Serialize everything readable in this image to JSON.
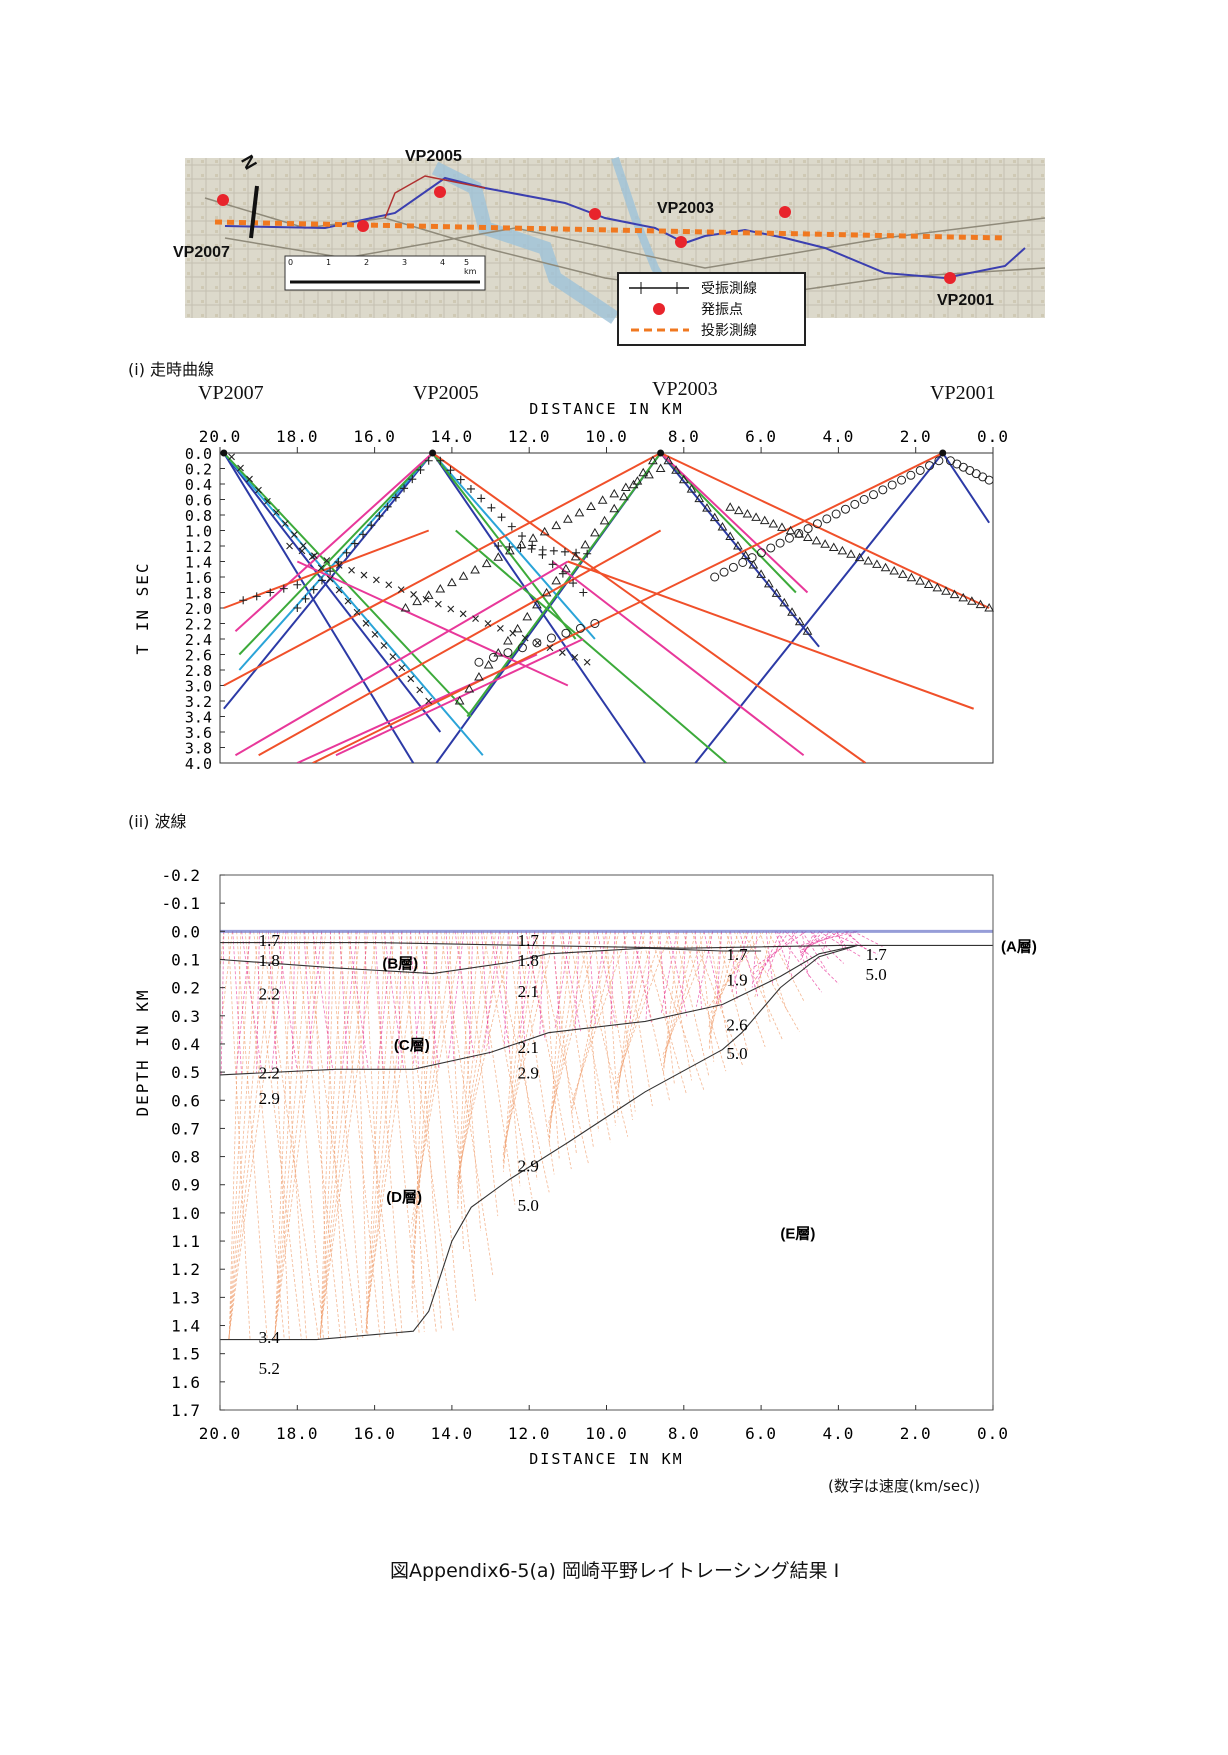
{
  "map": {
    "north": "N",
    "vp_labels": [
      "VP2005",
      "VP2007",
      "VP2003",
      "VP2001"
    ],
    "scale_ticks": [
      "0",
      "1",
      "2",
      "3",
      "4",
      "5 km"
    ],
    "legend": {
      "receiver_line": "受振測線",
      "shot_point": "発振点",
      "projection_line": "投影測線"
    },
    "colors": {
      "receiver": "#3b3fb0",
      "shot": "#e8242c",
      "projection": "#f07820",
      "map_bg": "#d9d6c8"
    }
  },
  "section_i": {
    "heading": "(i)  走時曲線",
    "vp_labels": [
      "VP2007",
      "VP2005",
      "VP2003",
      "VP2001"
    ]
  },
  "section_ii": {
    "heading": "(ii)  波線"
  },
  "chart_data": [
    {
      "type": "line",
      "xlabel": "DISTANCE IN KM",
      "ylabel": "T IN SEC",
      "x_ticks": [
        "20.0",
        "18.0",
        "16.0",
        "14.0",
        "12.0",
        "10.0",
        "8.0",
        "6.0",
        "4.0",
        "2.0",
        "0.0"
      ],
      "y_ticks": [
        "0.0",
        "0.2",
        "0.4",
        "0.6",
        "0.8",
        "1.0",
        "1.2",
        "1.4",
        "1.6",
        "1.8",
        "2.0",
        "2.2",
        "2.4",
        "2.6",
        "2.8",
        "3.0",
        "3.2",
        "3.4",
        "3.6",
        "3.8",
        "4.0"
      ],
      "xlim": [
        20.0,
        0.0
      ],
      "ylim": [
        0.0,
        4.0
      ],
      "sources": [
        {
          "name": "VP2007",
          "x": 19.9
        },
        {
          "name": "VP2005",
          "x": 14.5
        },
        {
          "name": "VP2003",
          "x": 8.6
        },
        {
          "name": "VP2001",
          "x": 1.3
        }
      ],
      "series": [
        {
          "color": "#2c3aa6",
          "lines": [
            [
              19.9,
              0.0,
              15.0,
              4.0
            ],
            [
              19.9,
              0.0,
              14.3,
              3.6
            ],
            [
              14.5,
              0.0,
              19.9,
              3.3
            ],
            [
              14.5,
              0.0,
              9.0,
              4.0
            ],
            [
              8.6,
              0.0,
              14.4,
              4.0
            ],
            [
              8.6,
              0.0,
              4.5,
              2.5
            ],
            [
              1.3,
              0.0,
              7.7,
              4.0
            ],
            [
              1.3,
              0.0,
              0.1,
              0.9
            ]
          ]
        },
        {
          "color": "#2aa4d8",
          "lines": [
            [
              19.9,
              0.0,
              13.2,
              3.9
            ],
            [
              14.5,
              0.0,
              19.5,
              2.8
            ],
            [
              14.5,
              0.0,
              10.3,
              2.4
            ]
          ]
        },
        {
          "color": "#3caa3a",
          "lines": [
            [
              19.9,
              0.0,
              13.5,
              3.4
            ],
            [
              14.5,
              0.0,
              19.5,
              2.6
            ],
            [
              14.5,
              0.0,
              10.8,
              2.4
            ],
            [
              8.6,
              0.0,
              13.6,
              3.4
            ],
            [
              8.6,
              0.0,
              5.1,
              1.8
            ],
            [
              13.9,
              1.0,
              6.9,
              4.0
            ]
          ]
        },
        {
          "color": "#e8389a",
          "lines": [
            [
              14.5,
              0.0,
              19.6,
              2.3
            ],
            [
              18.0,
              1.4,
              11.0,
              3.0
            ],
            [
              8.6,
              0.0,
              4.8,
              1.8
            ],
            [
              19.6,
              3.9,
              11.0,
              1.4
            ],
            [
              11.4,
              1.4,
              4.9,
              3.9
            ],
            [
              18.0,
              4.0,
              11.8,
              2.6
            ],
            [
              17.0,
              3.9,
              10.6,
              2.4
            ]
          ]
        },
        {
          "color": "#f0502a",
          "lines": [
            [
              19.9,
              2.0,
              14.6,
              1.0
            ],
            [
              19.9,
              3.0,
              8.6,
              0.0
            ],
            [
              8.6,
              0.0,
              0.1,
              2.0
            ],
            [
              11.0,
              1.4,
              0.5,
              3.3
            ],
            [
              14.5,
              0.0,
              3.3,
              4.0
            ],
            [
              17.6,
              4.0,
              1.3,
              0.0
            ],
            [
              19.0,
              3.9,
              8.6,
              1.0
            ]
          ]
        }
      ],
      "picks": [
        {
          "marker": "x",
          "label": "VP2007 picks"
        },
        {
          "marker": "+",
          "label": "VP2005 picks"
        },
        {
          "marker": "triangle",
          "label": "VP2003 picks"
        },
        {
          "marker": "circle",
          "label": "VP2001 picks"
        }
      ]
    },
    {
      "type": "line",
      "xlabel": "DISTANCE IN KM",
      "ylabel": "DEPTH IN KM",
      "x_ticks": [
        "20.0",
        "18.0",
        "16.0",
        "14.0",
        "12.0",
        "10.0",
        "8.0",
        "6.0",
        "4.0",
        "2.0",
        "0.0"
      ],
      "y_ticks": [
        "-0.2",
        "-0.1",
        "0.0",
        "0.1",
        "0.2",
        "0.3",
        "0.4",
        "0.5",
        "0.6",
        "0.7",
        "0.8",
        "0.9",
        "1.0",
        "1.1",
        "1.2",
        "1.3",
        "1.4",
        "1.5",
        "1.6",
        "1.7"
      ],
      "xlim": [
        20.0,
        0.0
      ],
      "ylim": [
        -0.2,
        1.7
      ],
      "boundaries": [
        {
          "name": "A-B",
          "points": [
            [
              20,
              0.04
            ],
            [
              16,
              0.04
            ],
            [
              12,
              0.05
            ],
            [
              8,
              0.06
            ],
            [
              4,
              0.05
            ],
            [
              0,
              0.05
            ]
          ]
        },
        {
          "name": "B-C",
          "points": [
            [
              20,
              0.1
            ],
            [
              17,
              0.13
            ],
            [
              14.5,
              0.15
            ],
            [
              12.5,
              0.11
            ],
            [
              11.5,
              0.08
            ],
            [
              9,
              0.06
            ],
            [
              7,
              0.07
            ],
            [
              6,
              0.07
            ]
          ]
        },
        {
          "name": "C-D",
          "points": [
            [
              20,
              0.51
            ],
            [
              17,
              0.49
            ],
            [
              15,
              0.49
            ],
            [
              13,
              0.43
            ],
            [
              11.5,
              0.36
            ],
            [
              9,
              0.32
            ],
            [
              7,
              0.26
            ],
            [
              5.5,
              0.16
            ],
            [
              4.5,
              0.08
            ],
            [
              3.5,
              0.05
            ]
          ]
        },
        {
          "name": "D-E",
          "points": [
            [
              20,
              1.45
            ],
            [
              17.5,
              1.45
            ],
            [
              15,
              1.42
            ],
            [
              14.6,
              1.35
            ],
            [
              14.0,
              1.1
            ],
            [
              13.5,
              0.98
            ],
            [
              12.5,
              0.88
            ],
            [
              11,
              0.75
            ],
            [
              9,
              0.57
            ],
            [
              7,
              0.42
            ],
            [
              6.5,
              0.36
            ],
            [
              5.5,
              0.2
            ],
            [
              4.5,
              0.09
            ],
            [
              3.5,
              0.05
            ]
          ]
        }
      ],
      "velocity_labels": [
        {
          "text": "1.7",
          "x": 19.0,
          "y": 0.01
        },
        {
          "text": "1.8",
          "x": 19.0,
          "y": 0.08
        },
        {
          "text": "2.2",
          "x": 19.0,
          "y": 0.2
        },
        {
          "text": "1.7",
          "x": 12.3,
          "y": 0.01
        },
        {
          "text": "1.8",
          "x": 12.3,
          "y": 0.08
        },
        {
          "text": "2.1",
          "x": 12.3,
          "y": 0.19
        },
        {
          "text": "1.7",
          "x": 6.9,
          "y": 0.06
        },
        {
          "text": "1.9",
          "x": 6.9,
          "y": 0.15
        },
        {
          "text": "1.7",
          "x": 3.3,
          "y": 0.06
        },
        {
          "text": "5.0",
          "x": 3.3,
          "y": 0.13
        },
        {
          "text": "2.1",
          "x": 12.3,
          "y": 0.39
        },
        {
          "text": "2.9",
          "x": 12.3,
          "y": 0.48
        },
        {
          "text": "2.6",
          "x": 6.9,
          "y": 0.31
        },
        {
          "text": "5.0",
          "x": 6.9,
          "y": 0.41
        },
        {
          "text": "2.2",
          "x": 19.0,
          "y": 0.48
        },
        {
          "text": "2.9",
          "x": 19.0,
          "y": 0.57
        },
        {
          "text": "2.9",
          "x": 12.3,
          "y": 0.81
        },
        {
          "text": "5.0",
          "x": 12.3,
          "y": 0.95
        },
        {
          "text": "3.4",
          "x": 19.0,
          "y": 1.42
        },
        {
          "text": "5.2",
          "x": 19.0,
          "y": 1.53
        }
      ],
      "layer_labels": [
        {
          "text": "(A層)",
          "x": -0.5,
          "y": 0.05
        },
        {
          "text": "(B層)",
          "x": 15.8,
          "y": 0.11
        },
        {
          "text": "(C層)",
          "x": 15.5,
          "y": 0.4
        },
        {
          "text": "(D層)",
          "x": 15.7,
          "y": 0.94
        },
        {
          "text": "(E層)",
          "x": 5.5,
          "y": 1.07
        }
      ],
      "ray_colors": [
        "#f0a070",
        "#e8389a"
      ]
    }
  ],
  "note": "(数字は速度(km/sec))",
  "caption": "図Appendix6-5(a)  岡崎平野レイトレーシング結果 I"
}
